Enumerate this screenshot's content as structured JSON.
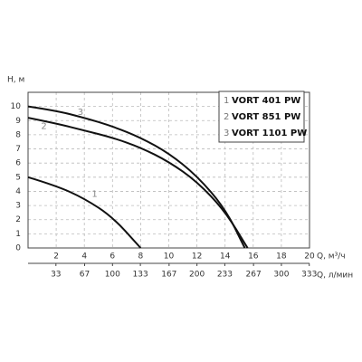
{
  "chart_data": {
    "type": "line",
    "ylabel": "H, м",
    "xlabel": "Q, м³/ч",
    "x2label": "Q, л/мин",
    "xlim": [
      0,
      20
    ],
    "xticks": [
      2,
      4,
      6,
      8,
      10,
      12,
      14,
      16,
      18,
      20
    ],
    "x2lim": [
      0,
      333.3
    ],
    "x2ticks": [
      33,
      67,
      100,
      133,
      167,
      200,
      233,
      267,
      300,
      333
    ],
    "ylim": [
      0,
      11
    ],
    "yticks": [
      0,
      1,
      2,
      3,
      4,
      5,
      6,
      7,
      8,
      9,
      10
    ],
    "grid": true,
    "legend": "upper right",
    "series": [
      {
        "name": "VORT 401 PW",
        "label": "1",
        "color": "#111111",
        "x": [
          0,
          2,
          4,
          6,
          8
        ],
        "values": [
          5,
          4.4,
          3.5,
          2.2,
          0
        ]
      },
      {
        "name": "VORT 851 PW",
        "label": "2",
        "color": "#111111",
        "x": [
          0,
          2,
          4,
          6,
          8,
          10,
          12,
          14,
          15.6
        ],
        "values": [
          9.2,
          8.8,
          8.3,
          7.8,
          7.1,
          6.1,
          4.7,
          2.6,
          0
        ]
      },
      {
        "name": "VORT 1101 PW",
        "label": "3",
        "color": "#111111",
        "x": [
          0,
          2,
          4,
          6,
          8,
          10,
          12,
          14,
          15.4
        ],
        "values": [
          10,
          9.7,
          9.2,
          8.6,
          7.8,
          6.7,
          5.1,
          2.8,
          0
        ]
      }
    ]
  }
}
